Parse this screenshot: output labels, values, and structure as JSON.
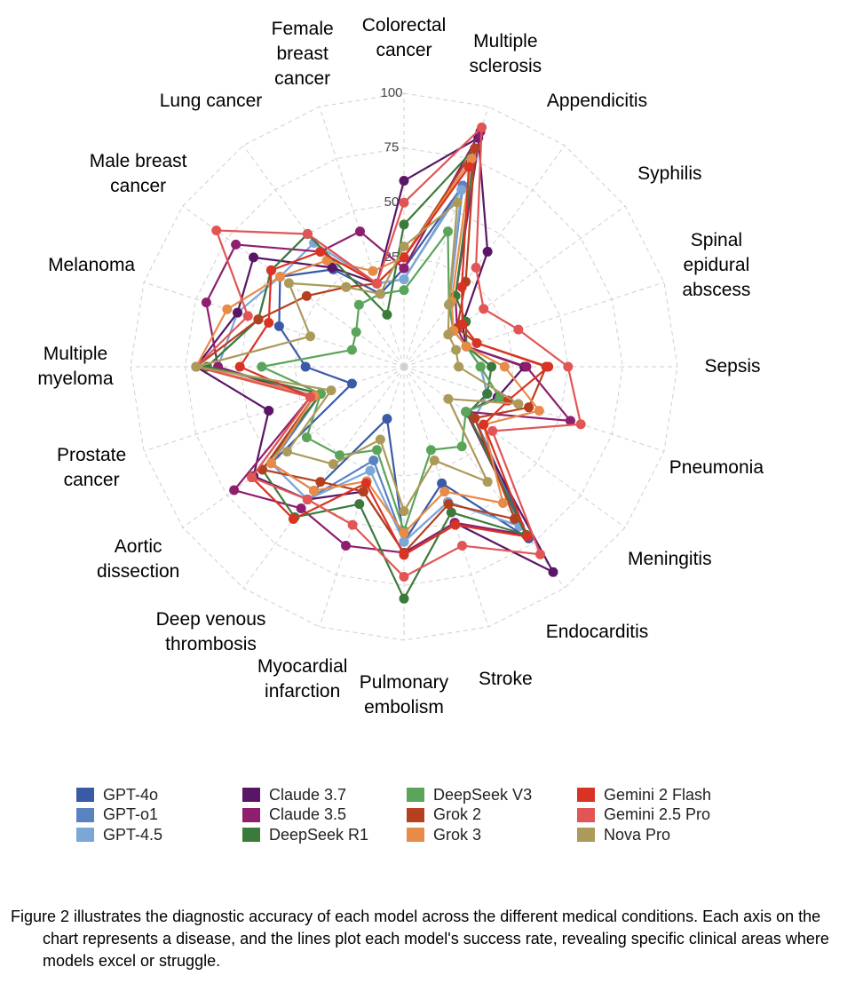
{
  "chart_data": {
    "type": "radar",
    "categories": [
      "Colorectal\ncancer",
      "Multiple\nsclerosis",
      "Appendicitis",
      "Syphilis",
      "Spinal\nepidural\nabscess",
      "Sepsis",
      "Pneumonia",
      "Meningitis",
      "Endocarditis",
      "Stroke",
      "Pulmonary\nembolism",
      "Myocardial\ninfarction",
      "Deep venous\nthrombosis",
      "Aortic\ndissection",
      "Prostate\ncancer",
      "Multiple\nmyeloma",
      "Melanoma",
      "Male breast\ncancer",
      "Lung cancer",
      "Female\nbreast\ncancer"
    ],
    "ylim": [
      -25,
      100
    ],
    "yticks": [
      25,
      50,
      75,
      100
    ],
    "grid": true,
    "series": [
      {
        "name": "GPT-4o",
        "color": "#3a5aa8",
        "values": [
          20,
          62,
          10,
          3,
          5,
          10,
          15,
          15,
          72,
          31,
          55,
          0,
          45,
          50,
          0,
          20,
          35,
          45,
          30,
          10
        ]
      },
      {
        "name": "GPT-o1",
        "color": "#5a82c0",
        "values": [
          15,
          62,
          10,
          3,
          5,
          10,
          15,
          15,
          65,
          40,
          55,
          20,
          50,
          50,
          15,
          65,
          45,
          50,
          50,
          15
        ]
      },
      {
        "name": "GPT-4.5",
        "color": "#7ba7d7",
        "values": [
          15,
          60,
          10,
          3,
          5,
          10,
          15,
          15,
          65,
          40,
          55,
          25,
          50,
          50,
          18,
          60,
          55,
          45,
          45,
          15
        ]
      },
      {
        "name": "Claude 3.7",
        "color": "#5a1666",
        "values": [
          60,
          85,
          40,
          8,
          5,
          30,
          20,
          10,
          91,
          50,
          60,
          35,
          50,
          60,
          40,
          70,
          55,
          60,
          31,
          15
        ]
      },
      {
        "name": "Claude 3.5",
        "color": "#8e1f6e",
        "values": [
          20,
          88,
          15,
          5,
          5,
          31,
          55,
          10,
          70,
          50,
          60,
          61,
          55,
          71,
          20,
          60,
          70,
          70,
          40,
          40
        ]
      },
      {
        "name": "DeepSeek R1",
        "color": "#3b7a3b",
        "values": [
          40,
          80,
          15,
          10,
          5,
          15,
          15,
          11,
          70,
          45,
          81,
          41,
          60,
          55,
          15,
          65,
          45,
          50,
          50,
          0
        ]
      },
      {
        "name": "DeepSeek V3",
        "color": "#5aa55a",
        "values": [
          10,
          40,
          10,
          3,
          5,
          10,
          21,
          10,
          20,
          15,
          50,
          15,
          25,
          30,
          15,
          40,
          0,
          2,
          10,
          10
        ]
      },
      {
        "name": "Grok 2",
        "color": "#b5401f",
        "values": [
          25,
          80,
          23,
          5,
          10,
          40,
          35,
          15,
          61,
          41,
          60,
          35,
          40,
          55,
          18,
          70,
          45,
          30,
          20,
          15
        ]
      },
      {
        "name": "Grok 3",
        "color": "#e88a48",
        "values": [
          25,
          75,
          12,
          3,
          5,
          21,
          40,
          20,
          52,
          35,
          51,
          30,
          45,
          50,
          18,
          70,
          60,
          45,
          35,
          21
        ]
      },
      {
        "name": "Gemini 2 Flash",
        "color": "#d93324",
        "values": [
          25,
          71,
          20,
          8,
          10,
          41,
          25,
          20,
          71,
          51,
          61,
          31,
          61,
          61,
          20,
          50,
          40,
          50,
          40,
          15
        ]
      },
      {
        "name": "Gemini 2.5 Pro",
        "color": "#e15555",
        "values": [
          50,
          90,
          31,
          20,
          30,
          50,
          60,
          25,
          81,
          61,
          71,
          51,
          50,
          61,
          20,
          70,
          50,
          81,
          50,
          15
        ]
      },
      {
        "name": "Nova Pro",
        "color": "#ab9a5a",
        "values": [
          30,
          54,
          10,
          0,
          0,
          0,
          30,
          0,
          40,
          20,
          41,
          10,
          30,
          41,
          10,
          70,
          20,
          40,
          20,
          10
        ]
      }
    ],
    "caption": "Figure 2 illustrates the diagnostic accuracy of each model across the different medical conditions. Each axis on the chart represents a disease, and the lines plot each model's success rate, revealing specific clinical areas where models excel or struggle."
  }
}
